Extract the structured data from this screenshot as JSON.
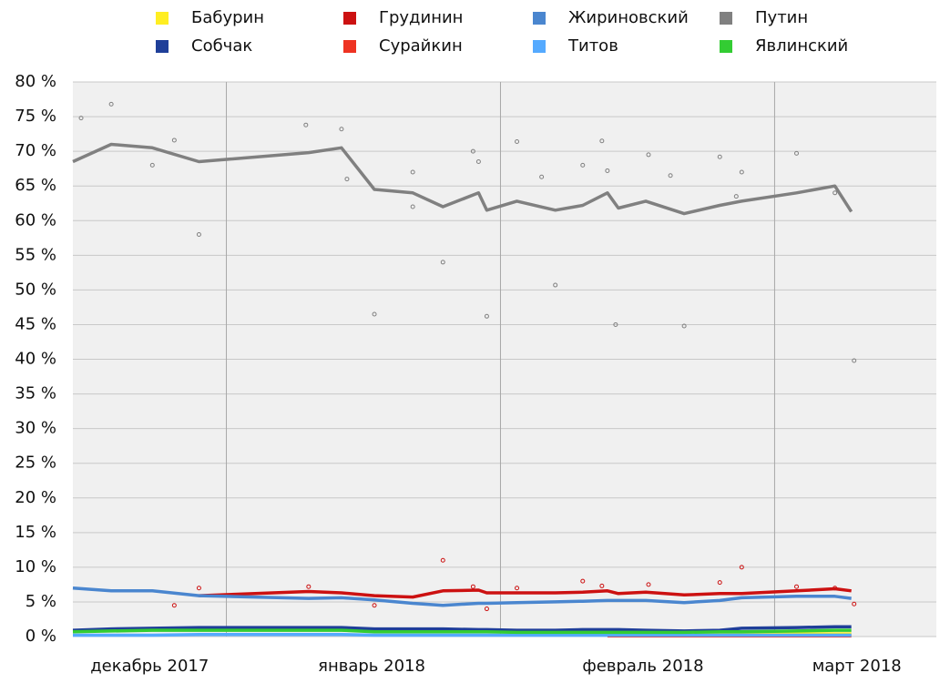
{
  "chart_data": {
    "type": "line",
    "x": [
      0.44,
      0.58,
      0.73,
      0.9,
      1.3,
      1.42,
      1.54,
      1.68,
      1.79,
      1.92,
      1.95,
      2.06,
      2.2,
      2.3,
      2.39,
      2.43,
      2.53,
      2.67,
      2.8,
      2.88,
      3.08,
      3.22,
      3.28
    ],
    "xlim": [
      0.44,
      3.59
    ],
    "xticks": [
      {
        "value": 0.72,
        "label": "декабрь 2017"
      },
      {
        "value": 1.53,
        "label": "январь 2018"
      },
      {
        "value": 2.52,
        "label": "февраль 2018"
      },
      {
        "value": 3.3,
        "label": "март 2018"
      }
    ],
    "xgrid": [
      1,
      2,
      3
    ],
    "ylim": [
      0,
      80
    ],
    "yticks": [
      {
        "value": 0,
        "label": "0 %"
      },
      {
        "value": 5,
        "label": "5 %"
      },
      {
        "value": 10,
        "label": "10 %"
      },
      {
        "value": 15,
        "label": "15 %"
      },
      {
        "value": 20,
        "label": "20 %"
      },
      {
        "value": 25,
        "label": "25 %"
      },
      {
        "value": 30,
        "label": "30 %"
      },
      {
        "value": 35,
        "label": "35 %"
      },
      {
        "value": 40,
        "label": "40 %"
      },
      {
        "value": 45,
        "label": "45 %"
      },
      {
        "value": 50,
        "label": "50 %"
      },
      {
        "value": 55,
        "label": "55 %"
      },
      {
        "value": 60,
        "label": "60 %"
      },
      {
        "value": 65,
        "label": "65 %"
      },
      {
        "value": 70,
        "label": "70 %"
      },
      {
        "value": 75,
        "label": "75 %"
      },
      {
        "value": 80,
        "label": "80 %"
      }
    ],
    "grid": true,
    "series": [
      {
        "name": "Бабурин",
        "color": "#ffee22",
        "values": [
          null,
          null,
          null,
          null,
          null,
          null,
          null,
          null,
          null,
          null,
          null,
          null,
          null,
          null,
          0.4,
          0.4,
          0.4,
          0.4,
          0.4,
          0.4,
          0.4,
          0.4,
          0.4
        ]
      },
      {
        "name": "Грудинин",
        "color": "#cc1111",
        "values": [
          null,
          null,
          null,
          5.9,
          6.5,
          6.3,
          5.9,
          5.7,
          6.6,
          6.7,
          6.3,
          6.3,
          6.3,
          6.4,
          6.6,
          6.2,
          6.4,
          6.0,
          6.2,
          6.2,
          6.6,
          6.9,
          6.6
        ],
        "poll_x": [
          0.81,
          0.9,
          1.3,
          1.54,
          1.79,
          1.9,
          1.95,
          2.06,
          2.3,
          2.37,
          2.54,
          2.8,
          2.88,
          3.08,
          3.22,
          3.29
        ],
        "poll_values": [
          4.5,
          7.0,
          7.2,
          4.5,
          11.0,
          7.2,
          4.0,
          7.0,
          8.0,
          7.3,
          7.5,
          7.8,
          10.0,
          7.2,
          7.0,
          4.7
        ]
      },
      {
        "name": "Жириновский",
        "color": "#4a86cf",
        "values": [
          7,
          6.6,
          6.6,
          5.9,
          5.5,
          5.6,
          5.3,
          4.8,
          4.5,
          4.8,
          4.8,
          4.9,
          5.0,
          5.1,
          5.2,
          5.2,
          5.2,
          4.9,
          5.2,
          5.6,
          5.8,
          5.8,
          5.5
        ]
      },
      {
        "name": "Путин",
        "color": "#808080",
        "values": [
          68.5,
          71,
          70.5,
          68.5,
          69.8,
          70.5,
          64.5,
          64,
          62,
          64,
          61.5,
          62.8,
          61.5,
          62.2,
          64,
          61.8,
          62.8,
          61,
          62.2,
          62.8,
          64,
          65,
          61.3
        ],
        "poll_x": [
          0.47,
          0.58,
          0.73,
          0.81,
          0.9,
          1.29,
          1.42,
          1.44,
          1.54,
          1.68,
          1.68,
          1.79,
          1.9,
          1.92,
          1.95,
          2.06,
          2.15,
          2.2,
          2.3,
          2.37,
          2.39,
          2.42,
          2.54,
          2.62,
          2.67,
          2.8,
          2.86,
          2.88,
          3.08,
          3.22,
          3.29
        ],
        "poll_values": [
          74.8,
          76.8,
          68,
          71.6,
          58,
          73.8,
          73.2,
          66,
          46.5,
          67,
          62,
          54,
          70,
          68.5,
          46.2,
          71.4,
          66.3,
          50.7,
          68,
          71.5,
          67.2,
          45,
          69.5,
          66.5,
          44.8,
          69.2,
          63.5,
          67,
          69.7,
          64,
          39.8
        ]
      },
      {
        "name": "Собчак",
        "color": "#1f3f99",
        "values": [
          0.9,
          1.1,
          1.2,
          1.3,
          1.3,
          1.3,
          1.1,
          1.1,
          1.1,
          1.0,
          1.0,
          0.9,
          0.9,
          1.0,
          1.0,
          1.0,
          0.9,
          0.8,
          0.9,
          1.2,
          1.3,
          1.4,
          1.4
        ]
      },
      {
        "name": "Сурайкин",
        "color": "#ee3322",
        "values": [
          null,
          null,
          null,
          null,
          null,
          null,
          null,
          null,
          null,
          null,
          null,
          null,
          null,
          null,
          0.1,
          0.1,
          0.1,
          0.1,
          0.1,
          0.1,
          0.1,
          0.1,
          0.1
        ]
      },
      {
        "name": "Титов",
        "color": "#55aaff",
        "values": [
          0.2,
          0.2,
          0.2,
          0.3,
          0.3,
          0.3,
          0.2,
          0.2,
          0.2,
          0.2,
          0.2,
          0.2,
          0.2,
          0.2,
          0.2,
          0.2,
          0.2,
          0.2,
          0.2,
          0.2,
          0.2,
          0.2,
          0.2
        ]
      },
      {
        "name": "Явлинский",
        "color": "#33cc33",
        "values": [
          0.7,
          0.8,
          0.9,
          0.9,
          0.9,
          0.9,
          0.7,
          0.7,
          0.7,
          0.7,
          0.7,
          0.6,
          0.6,
          0.6,
          0.6,
          0.6,
          0.6,
          0.6,
          0.7,
          0.7,
          0.8,
          0.9,
          0.9
        ]
      }
    ]
  }
}
